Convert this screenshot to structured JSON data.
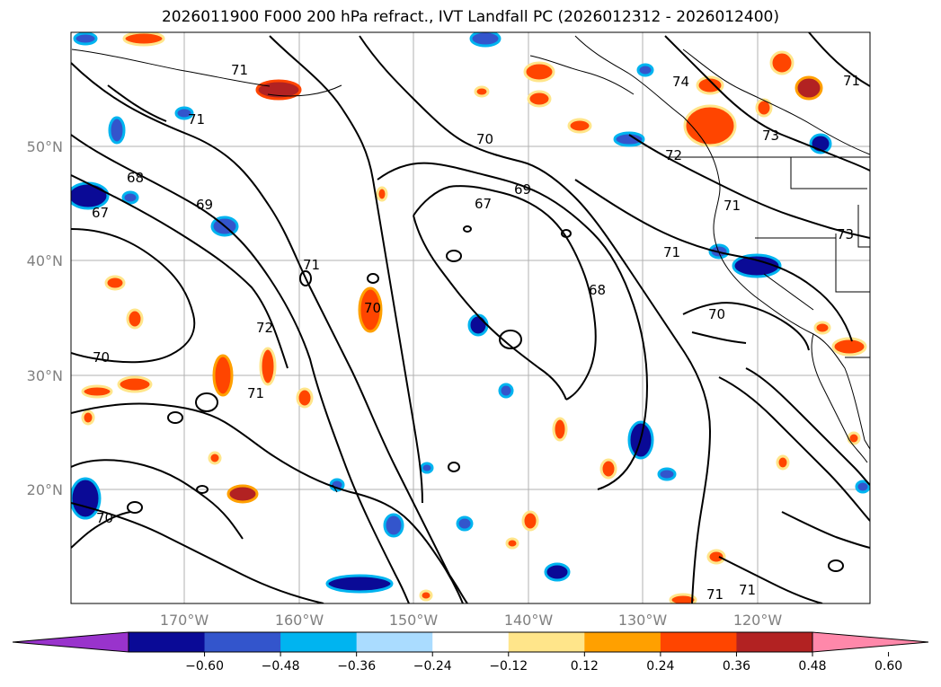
{
  "title": "2026011900 F000 200 hPa refract., IVT Landfall PC (2026012312 - 2026012400)",
  "lat_labels": [
    "50°N",
    "40°N",
    "30°N",
    "20°N"
  ],
  "lon_labels": [
    "170°W",
    "160°W",
    "150°W",
    "140°W",
    "130°W",
    "120°W"
  ],
  "contour_labels": [
    "71",
    "71",
    "70",
    "74",
    "71",
    "73",
    "72",
    "68",
    "67",
    "69",
    "67",
    "69",
    "71",
    "71",
    "73",
    "71",
    "68",
    "70",
    "72",
    "70",
    "70",
    "71",
    "70",
    "71",
    "71"
  ],
  "colorbar": {
    "ticks": [
      "−0.60",
      "−0.48",
      "−0.36",
      "−0.24",
      "−0.12",
      "0.12",
      "0.24",
      "0.36",
      "0.48",
      "0.60"
    ],
    "colors": [
      "#9933cc",
      "#0a0a96",
      "#3355cc",
      "#00b4f0",
      "#aadcff",
      "#ffffff",
      "#ffe58a",
      "#ffa000",
      "#ff4500",
      "#b22222",
      "#ff88aa"
    ]
  }
}
